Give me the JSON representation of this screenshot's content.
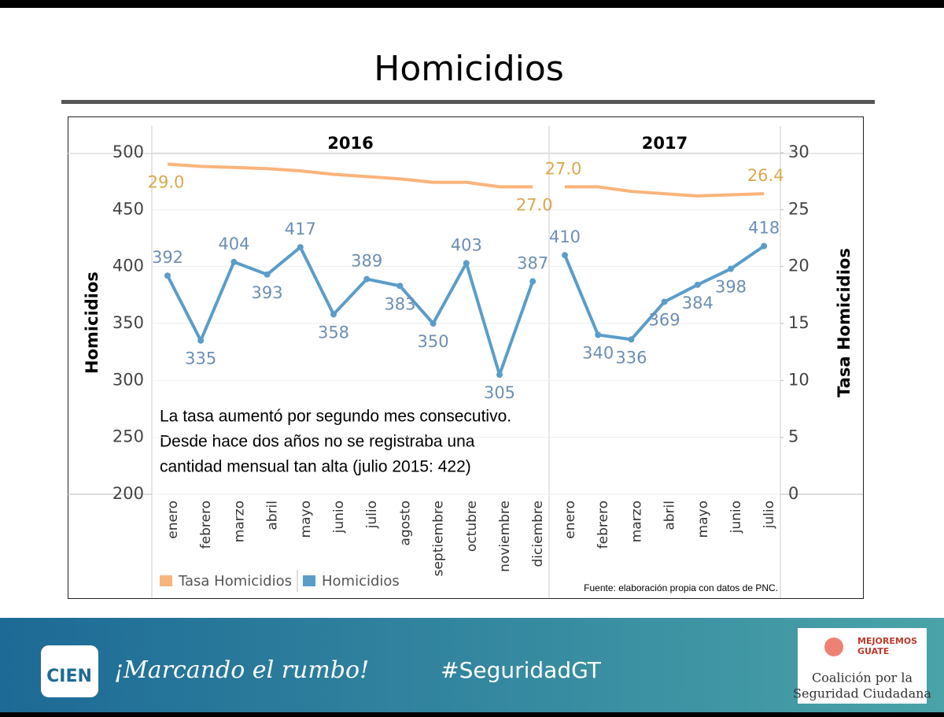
{
  "chart_data": {
    "type": "line",
    "title": "Homicidios",
    "panels": [
      "2016",
      "2017"
    ],
    "categories": [
      [
        "enero",
        "febrero",
        "marzo",
        "abril",
        "mayo",
        "junio",
        "julio",
        "agosto",
        "septiembre",
        "octubre",
        "noviembre",
        "diciembre"
      ],
      [
        "enero",
        "febrero",
        "marzo",
        "abril",
        "mayo",
        "junio",
        "julio"
      ]
    ],
    "y_label": "Homicidios",
    "y2_label": "Tasa Homicidios",
    "ylim": [
      200,
      500
    ],
    "yticks": [
      200,
      250,
      300,
      350,
      400,
      450,
      500
    ],
    "y2lim": [
      0,
      30
    ],
    "y2ticks": [
      0,
      5,
      10,
      15,
      20,
      25,
      30
    ],
    "grid": true,
    "legend": "bottom-left",
    "series": [
      {
        "name": "Tasa Homicidios",
        "color": "#f9b47c",
        "axis": "y2",
        "values": [
          [
            29.0,
            28.8,
            28.7,
            28.6,
            28.4,
            28.1,
            27.9,
            27.7,
            27.4,
            27.4,
            27.0,
            27.0
          ],
          [
            27.0,
            27.0,
            26.6,
            26.4,
            26.2,
            26.3,
            26.4
          ]
        ],
        "value_labels": [
          [
            "29.0",
            null,
            null,
            null,
            null,
            null,
            null,
            null,
            null,
            null,
            null,
            "27.0"
          ],
          [
            "27.0",
            null,
            null,
            null,
            null,
            null,
            "26.4"
          ]
        ]
      },
      {
        "name": "Homicidios",
        "color": "#5b9dc9",
        "values": [
          [
            392,
            335,
            404,
            393,
            417,
            358,
            389,
            383,
            350,
            403,
            305,
            387
          ],
          [
            410,
            340,
            336,
            369,
            384,
            398,
            418
          ]
        ]
      }
    ],
    "annotation": [
      "La tasa aumentó por segundo mes consecutivo.",
      "Desde hace dos años no se registraba una",
      "cantidad mensual tan alta (julio 2015: 422)"
    ],
    "source": "Fuente: elaboración propia con datos de PNC."
  },
  "footer": {
    "logo": "CIEN",
    "slogan": "¡Marcando el rumbo!",
    "hashtag": "#SeguridadGT",
    "partner_top": [
      "MEJOREMOS",
      "GUATE"
    ],
    "partner": [
      "Coalición por la",
      "Seguridad Ciudadana"
    ]
  }
}
